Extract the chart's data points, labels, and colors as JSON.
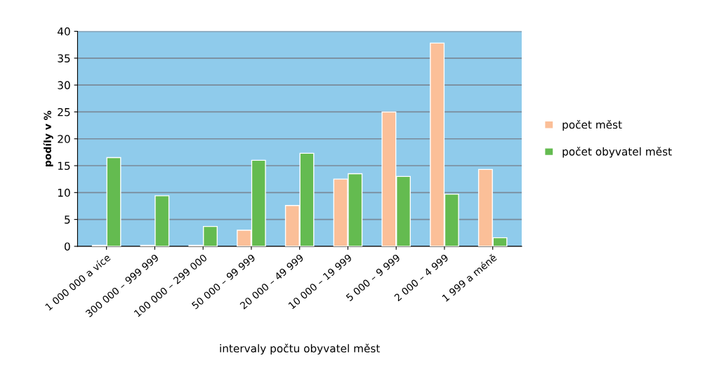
{
  "chart_data": {
    "type": "bar",
    "xlabel": "intervaly počtu obyvatel měst",
    "ylabel": "podíly v %",
    "categories": [
      "1 000 000 a více",
      "300 000 – 999 999",
      "100 000 – 299 000",
      "50 000 – 99 999",
      "20 000 – 49 999",
      "10 000 – 19 999",
      "5 000 – 9 999",
      "2 000 – 4 999",
      "1 999 a méně"
    ],
    "series": [
      {
        "name": "počet měst",
        "color": "#fbbf98",
        "values": [
          0.2,
          0.2,
          0.2,
          3.0,
          7.6,
          12.5,
          25.0,
          37.8,
          14.3
        ]
      },
      {
        "name": "počet obyvatel měst",
        "color": "#64bb50",
        "values": [
          16.5,
          9.4,
          3.7,
          16.0,
          17.3,
          13.5,
          13.0,
          9.7,
          1.6
        ]
      }
    ],
    "ylim": [
      0,
      40
    ],
    "yticks": [
      0,
      5,
      10,
      15,
      20,
      25,
      30,
      35,
      40
    ],
    "grid": "y",
    "legend": "right"
  }
}
